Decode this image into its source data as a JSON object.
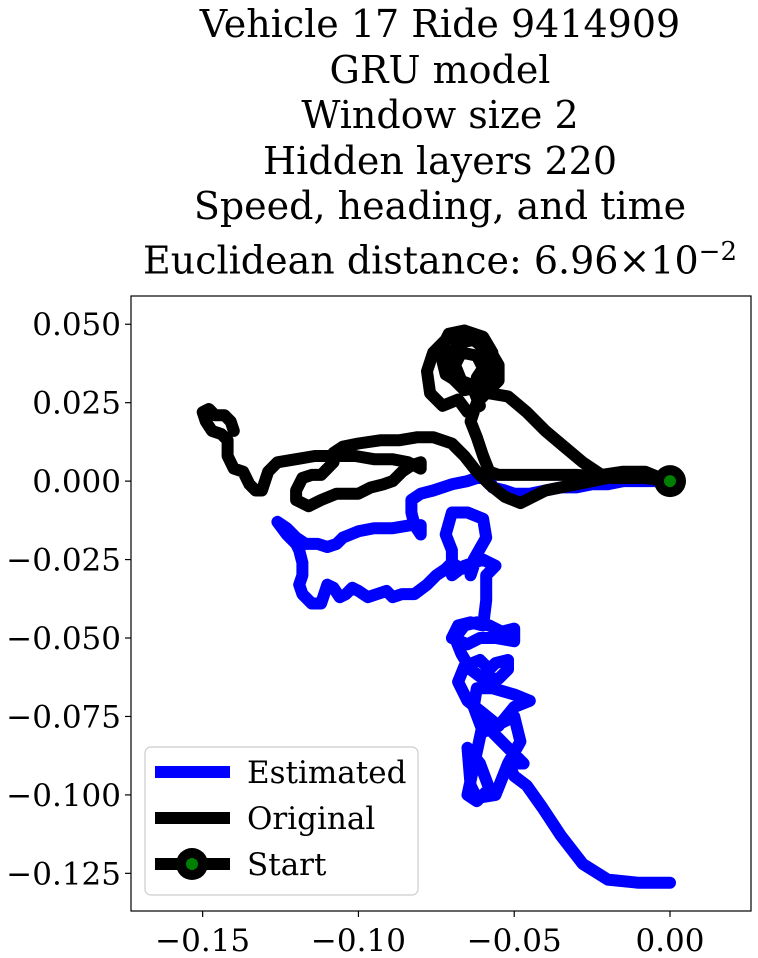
{
  "title_lines": [
    "Vehicle 17 Ride 9414909",
    "GRU model",
    "Window size 2",
    "Hidden layers 220",
    "Speed, heading, and time"
  ],
  "euclid": {
    "label": "Euclidean distance: 6.96",
    "times": "×10",
    "exponent": "−2"
  },
  "chart_data": {
    "type": "line",
    "xlim": [
      -0.173,
      0.026
    ],
    "ylim": [
      -0.137,
      0.059
    ],
    "xticks": [
      {
        "v": -0.15,
        "label": "−0.15"
      },
      {
        "v": -0.1,
        "label": "−0.10"
      },
      {
        "v": -0.05,
        "label": "−0.05"
      },
      {
        "v": 0.0,
        "label": "0.00"
      }
    ],
    "yticks": [
      {
        "v": 0.05,
        "label": "0.050"
      },
      {
        "v": 0.025,
        "label": "0.025"
      },
      {
        "v": 0.0,
        "label": "0.000"
      },
      {
        "v": -0.025,
        "label": "−0.025"
      },
      {
        "v": -0.05,
        "label": "−0.050"
      },
      {
        "v": -0.075,
        "label": "−0.075"
      },
      {
        "v": -0.1,
        "label": "−0.100"
      },
      {
        "v": -0.125,
        "label": "−0.125"
      }
    ],
    "grid": false,
    "legend_position": "lower-left",
    "series": [
      {
        "name": "Estimated",
        "color": "#0000ff",
        "points": [
          [
            0.0,
            -0.128
          ],
          [
            -0.01,
            -0.128
          ],
          [
            -0.02,
            -0.127
          ],
          [
            -0.028,
            -0.122
          ],
          [
            -0.035,
            -0.113
          ],
          [
            -0.041,
            -0.104
          ],
          [
            -0.046,
            -0.097
          ],
          [
            -0.05,
            -0.094
          ],
          [
            -0.052,
            -0.09
          ],
          [
            -0.047,
            -0.09
          ],
          [
            -0.055,
            -0.082
          ],
          [
            -0.06,
            -0.077
          ],
          [
            -0.065,
            -0.1
          ],
          [
            -0.062,
            -0.102
          ],
          [
            -0.058,
            -0.098
          ],
          [
            -0.061,
            -0.09
          ],
          [
            -0.065,
            -0.085
          ],
          [
            -0.064,
            -0.097
          ],
          [
            -0.062,
            -0.101
          ],
          [
            -0.056,
            -0.1
          ],
          [
            -0.052,
            -0.09
          ],
          [
            -0.048,
            -0.083
          ],
          [
            -0.05,
            -0.075
          ],
          [
            -0.06,
            -0.08
          ],
          [
            -0.063,
            -0.072
          ],
          [
            -0.062,
            -0.066
          ],
          [
            -0.057,
            -0.066
          ],
          [
            -0.05,
            -0.068
          ],
          [
            -0.045,
            -0.07
          ],
          [
            -0.05,
            -0.072
          ],
          [
            -0.055,
            -0.078
          ],
          [
            -0.06,
            -0.074
          ],
          [
            -0.065,
            -0.07
          ],
          [
            -0.068,
            -0.064
          ],
          [
            -0.066,
            -0.059
          ],
          [
            -0.061,
            -0.057
          ],
          [
            -0.058,
            -0.06
          ],
          [
            -0.056,
            -0.058
          ],
          [
            -0.052,
            -0.057
          ],
          [
            -0.052,
            -0.06
          ],
          [
            -0.055,
            -0.063
          ],
          [
            -0.06,
            -0.063
          ],
          [
            -0.064,
            -0.06
          ],
          [
            -0.067,
            -0.055
          ],
          [
            -0.069,
            -0.05
          ],
          [
            -0.066,
            -0.046
          ],
          [
            -0.062,
            -0.045
          ],
          [
            -0.058,
            -0.046
          ],
          [
            -0.054,
            -0.048
          ],
          [
            -0.05,
            -0.047
          ],
          [
            -0.05,
            -0.051
          ],
          [
            -0.056,
            -0.05
          ],
          [
            -0.061,
            -0.05
          ],
          [
            -0.065,
            -0.052
          ],
          [
            -0.07,
            -0.05
          ],
          [
            -0.068,
            -0.046
          ],
          [
            -0.064,
            -0.045
          ],
          [
            -0.06,
            -0.046
          ],
          [
            -0.059,
            -0.038
          ],
          [
            -0.059,
            -0.03
          ],
          [
            -0.056,
            -0.027
          ],
          [
            -0.06,
            -0.025
          ],
          [
            -0.066,
            -0.027
          ],
          [
            -0.07,
            -0.03
          ],
          [
            -0.07,
            -0.022
          ],
          [
            -0.072,
            -0.017
          ],
          [
            -0.07,
            -0.01
          ],
          [
            -0.065,
            -0.01
          ],
          [
            -0.06,
            -0.012
          ],
          [
            -0.059,
            -0.018
          ],
          [
            -0.063,
            -0.025
          ],
          [
            -0.064,
            -0.03
          ],
          [
            -0.063,
            -0.027
          ],
          [
            -0.067,
            -0.028
          ],
          [
            -0.07,
            -0.026
          ],
          [
            -0.072,
            -0.028
          ],
          [
            -0.075,
            -0.03
          ],
          [
            -0.078,
            -0.033
          ],
          [
            -0.082,
            -0.036
          ],
          [
            -0.086,
            -0.036
          ],
          [
            -0.089,
            -0.037
          ],
          [
            -0.091,
            -0.035
          ],
          [
            -0.094,
            -0.036
          ],
          [
            -0.097,
            -0.037
          ],
          [
            -0.1,
            -0.035
          ],
          [
            -0.102,
            -0.034
          ],
          [
            -0.104,
            -0.036
          ],
          [
            -0.106,
            -0.037
          ],
          [
            -0.108,
            -0.034
          ],
          [
            -0.11,
            -0.033
          ],
          [
            -0.111,
            -0.036
          ],
          [
            -0.112,
            -0.039
          ],
          [
            -0.115,
            -0.039
          ],
          [
            -0.118,
            -0.036
          ],
          [
            -0.119,
            -0.033
          ],
          [
            -0.118,
            -0.03
          ],
          [
            -0.118,
            -0.026
          ],
          [
            -0.119,
            -0.022
          ],
          [
            -0.12,
            -0.02
          ],
          [
            -0.123,
            -0.017
          ],
          [
            -0.126,
            -0.013
          ],
          [
            -0.123,
            -0.015
          ],
          [
            -0.12,
            -0.018
          ],
          [
            -0.117,
            -0.02
          ],
          [
            -0.113,
            -0.02
          ],
          [
            -0.11,
            -0.021
          ],
          [
            -0.107,
            -0.02
          ],
          [
            -0.105,
            -0.018
          ],
          [
            -0.1,
            -0.016
          ],
          [
            -0.095,
            -0.015
          ],
          [
            -0.089,
            -0.015
          ],
          [
            -0.083,
            -0.014
          ],
          [
            -0.08,
            -0.014
          ],
          [
            -0.08,
            -0.017
          ],
          [
            -0.082,
            -0.014
          ],
          [
            -0.083,
            -0.01
          ],
          [
            -0.083,
            -0.006
          ],
          [
            -0.08,
            -0.004
          ],
          [
            -0.076,
            -0.003
          ],
          [
            -0.07,
            -0.001
          ],
          [
            -0.065,
            0.0
          ],
          [
            -0.062,
            0.001
          ],
          [
            -0.058,
            0.001
          ],
          [
            -0.057,
            -0.002
          ],
          [
            -0.053,
            -0.003
          ],
          [
            -0.05,
            -0.004
          ],
          [
            -0.045,
            -0.004
          ],
          [
            -0.04,
            -0.003
          ],
          [
            -0.035,
            -0.002
          ],
          [
            -0.03,
            -0.002
          ],
          [
            -0.025,
            -0.001
          ],
          [
            -0.02,
            -0.001
          ],
          [
            -0.015,
            0.0
          ],
          [
            -0.01,
            0.0
          ],
          [
            -0.005,
            0.0
          ],
          [
            0.0,
            0.0
          ]
        ]
      },
      {
        "name": "Original",
        "color": "#000000",
        "points": [
          [
            0.0,
            0.0
          ],
          [
            -0.008,
            0.001
          ],
          [
            -0.018,
            0.001
          ],
          [
            -0.03,
            0.002
          ],
          [
            -0.045,
            0.002
          ],
          [
            -0.055,
            0.002
          ],
          [
            -0.058,
            0.003
          ],
          [
            -0.06,
            0.008
          ],
          [
            -0.062,
            0.014
          ],
          [
            -0.064,
            0.019
          ],
          [
            -0.062,
            0.025
          ],
          [
            -0.058,
            0.029
          ],
          [
            -0.055,
            0.032
          ],
          [
            -0.055,
            0.037
          ],
          [
            -0.058,
            0.042
          ],
          [
            -0.062,
            0.046
          ],
          [
            -0.066,
            0.048
          ],
          [
            -0.071,
            0.047
          ],
          [
            -0.073,
            0.043
          ],
          [
            -0.073,
            0.038
          ],
          [
            -0.072,
            0.034
          ],
          [
            -0.067,
            0.031
          ],
          [
            -0.063,
            0.029
          ],
          [
            -0.061,
            0.024
          ],
          [
            -0.065,
            0.022
          ],
          [
            -0.068,
            0.026
          ],
          [
            -0.073,
            0.024
          ],
          [
            -0.077,
            0.028
          ],
          [
            -0.078,
            0.035
          ],
          [
            -0.076,
            0.041
          ],
          [
            -0.072,
            0.045
          ],
          [
            -0.066,
            0.048
          ],
          [
            -0.06,
            0.046
          ],
          [
            -0.057,
            0.041
          ],
          [
            -0.057,
            0.035
          ],
          [
            -0.061,
            0.03
          ],
          [
            -0.066,
            0.029
          ],
          [
            -0.07,
            0.033
          ],
          [
            -0.071,
            0.039
          ],
          [
            -0.068,
            0.044
          ],
          [
            -0.063,
            0.045
          ],
          [
            -0.058,
            0.041
          ],
          [
            -0.058,
            0.035
          ],
          [
            -0.062,
            0.03
          ],
          [
            -0.067,
            0.032
          ],
          [
            -0.069,
            0.037
          ],
          [
            -0.067,
            0.041
          ],
          [
            -0.062,
            0.04
          ],
          [
            -0.06,
            0.036
          ],
          [
            -0.062,
            0.033
          ],
          [
            -0.058,
            0.028
          ],
          [
            -0.052,
            0.027
          ],
          [
            -0.046,
            0.022
          ],
          [
            -0.04,
            0.016
          ],
          [
            -0.034,
            0.011
          ],
          [
            -0.028,
            0.006
          ],
          [
            -0.022,
            0.002
          ],
          [
            -0.015,
            0.003
          ],
          [
            -0.008,
            0.003
          ],
          [
            -0.003,
            0.001
          ],
          [
            -0.01,
            0.002
          ],
          [
            -0.02,
            0.001
          ],
          [
            -0.04,
            -0.003
          ],
          [
            -0.048,
            -0.007
          ],
          [
            -0.053,
            -0.005
          ],
          [
            -0.058,
            -0.001
          ],
          [
            -0.062,
            0.003
          ],
          [
            -0.066,
            0.008
          ],
          [
            -0.07,
            0.012
          ],
          [
            -0.076,
            0.014
          ],
          [
            -0.081,
            0.014
          ],
          [
            -0.087,
            0.013
          ],
          [
            -0.093,
            0.013
          ],
          [
            -0.1,
            0.012
          ],
          [
            -0.105,
            0.011
          ],
          [
            -0.108,
            0.009
          ],
          [
            -0.108,
            0.006
          ],
          [
            -0.112,
            0.002
          ],
          [
            -0.115,
            0.002
          ],
          [
            -0.118,
            0.001
          ],
          [
            -0.12,
            -0.003
          ],
          [
            -0.12,
            -0.006
          ],
          [
            -0.116,
            -0.008
          ],
          [
            -0.112,
            -0.006
          ],
          [
            -0.107,
            -0.004
          ],
          [
            -0.103,
            -0.004
          ],
          [
            -0.1,
            -0.004
          ],
          [
            -0.096,
            -0.002
          ],
          [
            -0.092,
            -0.001
          ],
          [
            -0.089,
            0.0
          ],
          [
            -0.086,
            0.003
          ],
          [
            -0.083,
            0.005
          ],
          [
            -0.08,
            0.006
          ],
          [
            -0.08,
            0.004
          ],
          [
            -0.084,
            0.006
          ],
          [
            -0.089,
            0.007
          ],
          [
            -0.095,
            0.007
          ],
          [
            -0.101,
            0.008
          ],
          [
            -0.107,
            0.008
          ],
          [
            -0.114,
            0.008
          ],
          [
            -0.12,
            0.007
          ],
          [
            -0.126,
            0.006
          ],
          [
            -0.129,
            0.003
          ],
          [
            -0.13,
            0.0
          ],
          [
            -0.131,
            -0.003
          ],
          [
            -0.133,
            -0.003
          ],
          [
            -0.135,
            -0.001
          ],
          [
            -0.137,
            0.003
          ],
          [
            -0.14,
            0.004
          ],
          [
            -0.142,
            0.008
          ],
          [
            -0.142,
            0.013
          ],
          [
            -0.144,
            0.015
          ],
          [
            -0.147,
            0.016
          ],
          [
            -0.149,
            0.019
          ],
          [
            -0.15,
            0.022
          ],
          [
            -0.148,
            0.023
          ],
          [
            -0.146,
            0.021
          ],
          [
            -0.143,
            0.021
          ],
          [
            -0.141,
            0.019
          ],
          [
            -0.14,
            0.016
          ]
        ]
      },
      {
        "name": "Start",
        "color": "#000000",
        "marker_color": "#008000",
        "points": [
          [
            0.0,
            0.0
          ]
        ]
      }
    ]
  }
}
